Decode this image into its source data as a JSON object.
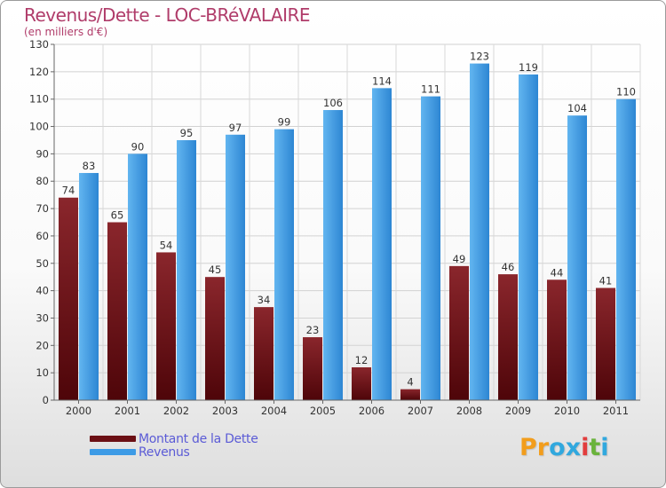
{
  "header": {
    "title": "Revenus/Dette - LOC-BRéVALAIRE",
    "subtitle": "(en milliers d'€)"
  },
  "legend": {
    "items": [
      {
        "label": "Montant de la Dette",
        "color": "#6b0f14"
      },
      {
        "label": "Revenus",
        "color": "#3d9be6"
      }
    ]
  },
  "logo": {
    "text": "Proxiti",
    "letters": [
      {
        "ch": "P",
        "color": "#f29d1c"
      },
      {
        "ch": "r",
        "color": "#f29d1c"
      },
      {
        "ch": "o",
        "color": "#31a8de"
      },
      {
        "ch": "x",
        "color": "#31a8de"
      },
      {
        "ch": "i",
        "color": "#e23d3d"
      },
      {
        "ch": "t",
        "color": "#6ab33c"
      },
      {
        "ch": "i",
        "color": "#31a8de"
      }
    ]
  },
  "chart_data": {
    "type": "bar",
    "title": "Revenus/Dette - LOC-BRéVALAIRE",
    "subtitle": "(en milliers d'€)",
    "categories": [
      "2000",
      "2001",
      "2002",
      "2003",
      "2004",
      "2005",
      "2006",
      "2007",
      "2008",
      "2009",
      "2010",
      "2011"
    ],
    "series": [
      {
        "name": "Montant de la Dette",
        "color": "#6b0f14",
        "values": [
          74,
          65,
          54,
          45,
          34,
          23,
          12,
          4,
          49,
          46,
          44,
          41
        ]
      },
      {
        "name": "Revenus",
        "color": "#3d9be6",
        "values": [
          83,
          90,
          95,
          97,
          99,
          106,
          114,
          111,
          123,
          119,
          104,
          110
        ]
      }
    ],
    "ylim": [
      0,
      130
    ],
    "yticks": [
      0,
      10,
      20,
      30,
      40,
      50,
      60,
      70,
      80,
      90,
      100,
      110,
      120,
      130
    ],
    "grid": true,
    "data_labels": true,
    "legend_position": "bottom-left"
  }
}
